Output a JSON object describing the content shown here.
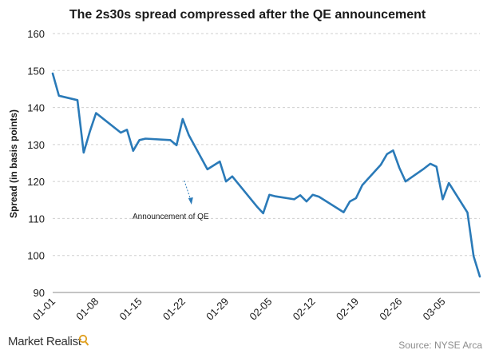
{
  "brand": {
    "name": "Market Realist",
    "icon": "magnifier-icon"
  },
  "source": "Source: NYSE Arca",
  "chart_data": {
    "type": "line",
    "title": "The 2s30s spread compressed after the QE announcement",
    "ylabel": "Spread (in basis points)",
    "xlabel": "",
    "ylim": [
      90,
      160
    ],
    "yticks": [
      90,
      100,
      110,
      120,
      130,
      140,
      150,
      160
    ],
    "xtick_labels": [
      "01-01",
      "01-08",
      "01-15",
      "01-22",
      "01-29",
      "02-05",
      "02-12",
      "02-19",
      "02-26",
      "03-05"
    ],
    "grid": true,
    "legend": "none",
    "line_color": "#2a7ab8",
    "annotation": {
      "text": "Announcement of QE",
      "arrow_at": "01-22"
    },
    "series": [
      {
        "x": [
          "01-01",
          "01-02",
          "01-05",
          "01-06",
          "01-07",
          "01-08",
          "01-12",
          "01-13",
          "01-14",
          "01-15",
          "01-16",
          "01-20",
          "01-21",
          "01-22",
          "01-23",
          "01-26",
          "01-28",
          "01-29",
          "01-30",
          "02-03",
          "02-04",
          "02-05",
          "02-06",
          "02-09",
          "02-10",
          "02-11",
          "02-12",
          "02-13",
          "02-17",
          "02-18",
          "02-19",
          "02-20",
          "02-23",
          "02-24",
          "02-25",
          "02-26",
          "02-27",
          "03-02",
          "03-03",
          "03-04",
          "03-05",
          "03-06",
          "03-09",
          "03-10",
          "03-11"
        ],
        "values": [
          149.2,
          143.2,
          142.0,
          127.8,
          133.5,
          138.5,
          133.2,
          134.0,
          128.3,
          131.2,
          131.6,
          131.2,
          129.8,
          136.9,
          132.5,
          123.3,
          125.4,
          120.0,
          121.4,
          113.2,
          111.4,
          116.4,
          116.0,
          115.2,
          116.3,
          114.6,
          116.4,
          115.9,
          111.7,
          114.6,
          115.5,
          119.0,
          124.5,
          127.4,
          128.4,
          123.7,
          120.0,
          123.5,
          124.8,
          124.0,
          115.2,
          119.6,
          111.6,
          99.8,
          94.3
        ]
      }
    ]
  }
}
